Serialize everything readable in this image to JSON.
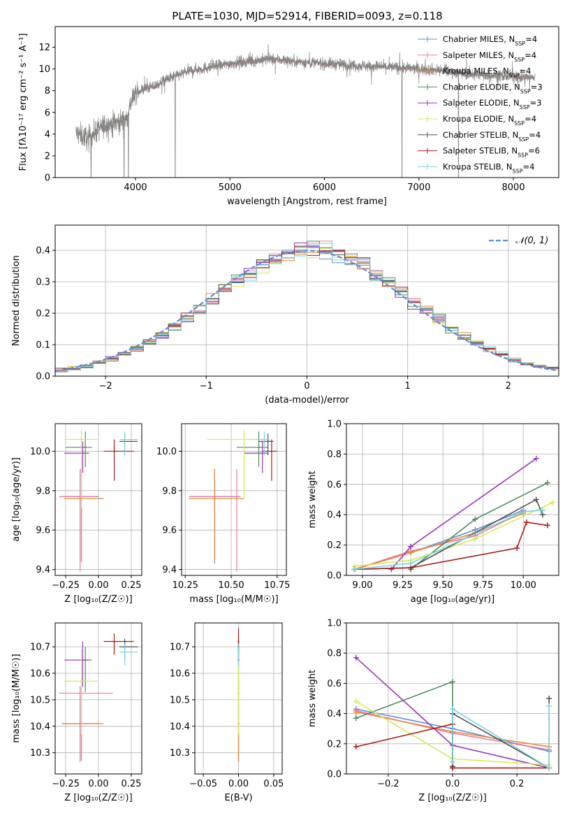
{
  "figure": {
    "title": "PLATE=1030, MJD=52914, FIBERID=0093, z=0.118"
  },
  "series_colors": [
    "#5d8fd6",
    "#e67ea6",
    "#e68a3a",
    "#4f8a5c",
    "#9a35b5",
    "#d6e85a",
    "#505050",
    "#a81b1b",
    "#7ad3dc"
  ],
  "chart_data": [
    {
      "id": "spectrum",
      "type": "line",
      "title": "PLATE=1030, MJD=52914, FIBERID=0093, z=0.118",
      "xlabel": "wavelength [Angstrom, rest frame]",
      "ylabel": "Flux [fλ10⁻¹⁷ erg cm⁻² s⁻¹ A⁻¹]",
      "xlim": [
        3150,
        8480
      ],
      "ylim": [
        0,
        13.9
      ],
      "xticks": [
        4000,
        5000,
        6000,
        7000,
        8000
      ],
      "yticks": [
        0,
        2,
        4,
        6,
        8,
        10,
        12
      ],
      "grid": false,
      "legend_position": "top-right",
      "legend": [
        {
          "label": "Chabrier MILES, N",
          "sub": "SSP",
          "tail": "=4",
          "color": "#5d8fd6"
        },
        {
          "label": "Salpeter MILES, N",
          "sub": "SSP",
          "tail": "=4",
          "color": "#e67ea6"
        },
        {
          "label": "Kroupa MILES, N",
          "sub": "SSP",
          "tail": "=4",
          "color": "#e68a3a"
        },
        {
          "label": "Chabrier ELODIE, N",
          "sub": "SSP",
          "tail": "=3",
          "color": "#4f8a5c"
        },
        {
          "label": "Salpeter ELODIE, N",
          "sub": "SSP",
          "tail": "=3",
          "color": "#9a35b5"
        },
        {
          "label": "Kroupa ELODIE, N",
          "sub": "SSP",
          "tail": "=4",
          "color": "#d6e85a"
        },
        {
          "label": "Chabrier STELIB, N",
          "sub": "SSP",
          "tail": "=4",
          "color": "#505050"
        },
        {
          "label": "Salpeter STELIB, N",
          "sub": "SSP",
          "tail": "=6",
          "color": "#a81b1b"
        },
        {
          "label": "Kroupa STELIB, N",
          "sub": "SSP",
          "tail": "=4",
          "color": "#7ad3dc"
        }
      ],
      "continuum": {
        "x": [
          3370,
          3500,
          3600,
          3700,
          3800,
          3900,
          3950,
          4000,
          4100,
          4200,
          4300,
          4400,
          4500,
          4600,
          4700,
          4800,
          4900,
          5000,
          5200,
          5400,
          5600,
          5800,
          6000,
          6200,
          6400,
          6600,
          6800,
          7000,
          7200,
          7400,
          7600,
          7800,
          8000,
          8200
        ],
        "y": [
          4.1,
          3.6,
          4.4,
          4.9,
          5.1,
          5.3,
          6.8,
          7.8,
          8.2,
          8.4,
          8.9,
          9.3,
          9.6,
          9.9,
          10.0,
          10.2,
          10.3,
          10.5,
          10.7,
          10.9,
          10.8,
          10.6,
          10.5,
          10.4,
          10.3,
          10.2,
          10.1,
          10.0,
          9.9,
          9.7,
          9.5,
          9.4,
          9.3,
          9.2
        ]
      },
      "absorption_dips": [
        3530,
        3880,
        3925,
        4420,
        6820,
        7420
      ]
    },
    {
      "id": "residuals",
      "type": "line",
      "xlabel": "(data-model)/error",
      "ylabel": "Normed distribution",
      "xlim": [
        -2.5,
        2.5
      ],
      "ylim": [
        0,
        0.48
      ],
      "xticks": [
        -2,
        -1,
        0,
        1,
        2
      ],
      "yticks": [
        0.0,
        0.1,
        0.2,
        0.3,
        0.4
      ],
      "grid": true,
      "legend_position": "top-right",
      "legend": [
        {
          "label": "𝒩(0, 1)",
          "color": "#5d8fd6"
        }
      ]
    },
    {
      "id": "age_vs_Z",
      "type": "scatter",
      "xlabel": "Z [log₁₀(Z/Z☉)]",
      "ylabel": "age  [log₁₀(age/yr)]",
      "xlim": [
        -0.33,
        0.33
      ],
      "ylim": [
        9.37,
        10.14
      ],
      "xticks": [
        -0.25,
        0.0,
        0.25
      ],
      "yticks": [
        9.4,
        9.6,
        9.8,
        10.0
      ],
      "grid": true,
      "points": [
        {
          "x": -0.14,
          "y": 9.77,
          "xerr": [
            0.14,
            0.14
          ],
          "yerr": [
            0.34,
            0.14
          ],
          "series": 0
        },
        {
          "x": -0.14,
          "y": 9.77,
          "xerr": [
            0.16,
            0.12
          ],
          "yerr": [
            0.38,
            0.14
          ],
          "series": 1
        },
        {
          "x": -0.13,
          "y": 9.76,
          "xerr": [
            0.13,
            0.17
          ],
          "yerr": [
            0.32,
            0.15
          ],
          "series": 2
        },
        {
          "x": -0.1,
          "y": 10.02,
          "xerr": [
            0.15,
            0.05
          ],
          "yerr": [
            0.1,
            0.08
          ],
          "series": 3
        },
        {
          "x": -0.12,
          "y": 9.99,
          "xerr": [
            0.14,
            0.05
          ],
          "yerr": [
            0.1,
            0.06
          ],
          "series": 4
        },
        {
          "x": -0.13,
          "y": 10.06,
          "xerr": [
            0.13,
            0.12
          ],
          "yerr": [
            0.35,
            0.05
          ],
          "series": 5
        },
        {
          "x": 0.2,
          "y": 10.05,
          "xerr": [
            0.04,
            0.1
          ],
          "yerr": [
            0.07,
            0.04
          ],
          "series": 6
        },
        {
          "x": 0.12,
          "y": 10.0,
          "xerr": [
            0.08,
            0.15
          ],
          "yerr": [
            0.15,
            0.06
          ],
          "series": 7
        },
        {
          "x": 0.2,
          "y": 10.06,
          "xerr": [
            0.04,
            0.1
          ],
          "yerr": [
            0.08,
            0.04
          ],
          "series": 8
        }
      ]
    },
    {
      "id": "age_vs_mass",
      "type": "scatter",
      "xlabel": "mass [log₁₀(M/M☉)]",
      "ylabel": "",
      "xlim": [
        10.23,
        10.8
      ],
      "ylim": [
        9.37,
        10.14
      ],
      "xticks": [
        10.25,
        10.5,
        10.75
      ],
      "yticks": [
        9.4,
        9.6,
        9.8,
        10.0
      ],
      "grid": true,
      "points": [
        {
          "x": 10.41,
          "y": 9.77,
          "xerr": [
            0.14,
            0.14
          ],
          "yerr": [
            0.34,
            0.14
          ],
          "series": 0
        },
        {
          "x": 10.53,
          "y": 9.77,
          "xerr": [
            0.26,
            0.02
          ],
          "yerr": [
            0.38,
            0.14
          ],
          "series": 1
        },
        {
          "x": 10.41,
          "y": 9.76,
          "xerr": [
            0.14,
            0.16
          ],
          "yerr": [
            0.32,
            0.15
          ],
          "series": 2
        },
        {
          "x": 10.65,
          "y": 10.02,
          "xerr": [
            0.12,
            0.05
          ],
          "yerr": [
            0.1,
            0.08
          ],
          "series": 3
        },
        {
          "x": 10.67,
          "y": 9.99,
          "xerr": [
            0.1,
            0.03
          ],
          "yerr": [
            0.1,
            0.06
          ],
          "series": 4
        },
        {
          "x": 10.57,
          "y": 10.06,
          "xerr": [
            0.2,
            0.12
          ],
          "yerr": [
            0.3,
            0.05
          ],
          "series": 5
        },
        {
          "x": 10.7,
          "y": 10.05,
          "xerr": [
            0.05,
            0.03
          ],
          "yerr": [
            0.07,
            0.04
          ],
          "series": 6
        },
        {
          "x": 10.72,
          "y": 10.0,
          "xerr": [
            0.05,
            0.03
          ],
          "yerr": [
            0.15,
            0.06
          ],
          "series": 7
        },
        {
          "x": 10.68,
          "y": 10.06,
          "xerr": [
            0.05,
            0.03
          ],
          "yerr": [
            0.08,
            0.04
          ],
          "series": 8
        }
      ]
    },
    {
      "id": "weight_vs_age",
      "type": "line",
      "xlabel": "age  [log₁₀(age/yr)]",
      "ylabel": "mass weight",
      "xlim": [
        8.9,
        10.22
      ],
      "ylim": [
        0,
        1.0
      ],
      "xticks": [
        9.0,
        9.25,
        9.5,
        9.75,
        10.0
      ],
      "yticks": [
        0.0,
        0.2,
        0.4,
        0.6,
        0.8,
        1.0
      ],
      "grid": true,
      "series": [
        {
          "name": "Chabrier MILES, NSSP=4",
          "x": [
            8.95,
            9.3,
            9.7,
            10.0
          ],
          "y": [
            0.04,
            0.15,
            0.3,
            0.43
          ]
        },
        {
          "name": "Salpeter MILES, NSSP=4",
          "x": [
            8.95,
            9.3,
            9.7,
            10.0
          ],
          "y": [
            0.04,
            0.16,
            0.26,
            0.42
          ]
        },
        {
          "name": "Kroupa MILES, NSSP=4",
          "x": [
            8.95,
            9.3,
            9.7,
            10.0
          ],
          "y": [
            0.04,
            0.15,
            0.28,
            0.41
          ]
        },
        {
          "name": "Chabrier ELODIE, NSSP=3",
          "x": [
            9.3,
            9.7,
            10.15
          ],
          "y": [
            0.04,
            0.37,
            0.61
          ]
        },
        {
          "name": "Salpeter ELODIE, NSSP=3",
          "x": [
            9.18,
            9.3,
            10.08
          ],
          "y": [
            0.04,
            0.19,
            0.77
          ]
        },
        {
          "name": "Kroupa ELODIE, NSSP=4",
          "x": [
            8.95,
            9.3,
            9.7,
            10.18
          ],
          "y": [
            0.06,
            0.1,
            0.24,
            0.48
          ]
        },
        {
          "name": "Chabrier STELIB, NSSP=4",
          "x": [
            8.95,
            9.3,
            10.08,
            10.12
          ],
          "y": [
            0.04,
            0.05,
            0.5,
            0.4
          ]
        },
        {
          "name": "Salpeter STELIB, NSSP=6",
          "x": [
            8.95,
            9.3,
            9.96,
            10.02,
            10.15
          ],
          "y": [
            0.04,
            0.05,
            0.18,
            0.35,
            0.33
          ]
        },
        {
          "name": "Kroupa STELIB, NSSP=4",
          "x": [
            8.95,
            9.3,
            10.0,
            10.12
          ],
          "y": [
            0.04,
            0.08,
            0.42,
            0.43
          ]
        }
      ]
    },
    {
      "id": "mass_vs_Z",
      "type": "scatter",
      "xlabel": "Z [log₁₀(Z/Z☉)]",
      "ylabel": "mass [log₁₀(M/M☉)]",
      "xlim": [
        -0.33,
        0.33
      ],
      "ylim": [
        10.22,
        10.79
      ],
      "xticks": [
        -0.25,
        0.0,
        0.25
      ],
      "yticks": [
        10.3,
        10.4,
        10.5,
        10.6,
        10.7
      ],
      "grid": true,
      "points": [
        {
          "x": -0.14,
          "y": 10.41,
          "xerr": [
            0.14,
            0.14
          ],
          "yerr": [
            0.14,
            0.14
          ],
          "series": 0
        },
        {
          "x": -0.14,
          "y": 10.525,
          "xerr": [
            0.16,
            0.25
          ],
          "yerr": [
            0.26,
            0.02
          ],
          "series": 1
        },
        {
          "x": -0.13,
          "y": 10.41,
          "xerr": [
            0.13,
            0.17
          ],
          "yerr": [
            0.14,
            0.16
          ],
          "series": 2
        },
        {
          "x": -0.1,
          "y": 10.65,
          "xerr": [
            0.15,
            0.05
          ],
          "yerr": [
            0.12,
            0.05
          ],
          "series": 3
        },
        {
          "x": -0.12,
          "y": 10.65,
          "xerr": [
            0.14,
            0.05
          ],
          "yerr": [
            0.1,
            0.07
          ],
          "series": 4
        },
        {
          "x": -0.13,
          "y": 10.57,
          "xerr": [
            0.13,
            0.12
          ],
          "yerr": [
            0.2,
            0.12
          ],
          "series": 5
        },
        {
          "x": 0.2,
          "y": 10.7,
          "xerr": [
            0.04,
            0.1
          ],
          "yerr": [
            0.05,
            0.03
          ],
          "series": 6
        },
        {
          "x": 0.12,
          "y": 10.72,
          "xerr": [
            0.08,
            0.15
          ],
          "yerr": [
            0.05,
            0.03
          ],
          "series": 7
        },
        {
          "x": 0.2,
          "y": 10.68,
          "xerr": [
            0.04,
            0.1
          ],
          "yerr": [
            0.05,
            0.03
          ],
          "series": 8
        }
      ]
    },
    {
      "id": "mass_vs_ebv",
      "type": "scatter",
      "xlabel": "E(B-V)",
      "ylabel": "",
      "xlim": [
        -0.062,
        0.062
      ],
      "ylim": [
        10.22,
        10.79
      ],
      "xticks": [
        -0.05,
        0.0,
        0.05
      ],
      "yticks": [
        10.3,
        10.4,
        10.5,
        10.6,
        10.7
      ],
      "grid": true,
      "points": [
        {
          "x": 0.0,
          "y": 10.41,
          "xerr": [
            0.0,
            0.0
          ],
          "yerr": [
            0.14,
            0.14
          ],
          "series": 0
        },
        {
          "x": 0.0,
          "y": 10.525,
          "xerr": [
            0.0,
            0.0
          ],
          "yerr": [
            0.26,
            0.02
          ],
          "series": 1
        },
        {
          "x": 0.0,
          "y": 10.41,
          "xerr": [
            0.0,
            0.0
          ],
          "yerr": [
            0.14,
            0.16
          ],
          "series": 2
        },
        {
          "x": 0.0,
          "y": 10.65,
          "xerr": [
            0.0,
            0.0
          ],
          "yerr": [
            0.12,
            0.05
          ],
          "series": 3
        },
        {
          "x": 0.0,
          "y": 10.65,
          "xerr": [
            0.0,
            0.0
          ],
          "yerr": [
            0.1,
            0.07
          ],
          "series": 4
        },
        {
          "x": 0.0,
          "y": 10.57,
          "xerr": [
            0.0,
            0.0
          ],
          "yerr": [
            0.2,
            0.12
          ],
          "series": 5
        },
        {
          "x": 0.0,
          "y": 10.7,
          "xerr": [
            0.0,
            0.0
          ],
          "yerr": [
            0.05,
            0.03
          ],
          "series": 6
        },
        {
          "x": 0.0,
          "y": 10.72,
          "xerr": [
            0.0,
            0.0
          ],
          "yerr": [
            0.05,
            0.05
          ],
          "series": 7
        },
        {
          "x": 0.0,
          "y": 10.68,
          "xerr": [
            0.0,
            0.0
          ],
          "yerr": [
            0.05,
            0.03
          ],
          "series": 8
        }
      ]
    },
    {
      "id": "weight_vs_Z",
      "type": "line",
      "xlabel": "Z [log₁₀(Z/Z☉)]",
      "ylabel": "mass weight",
      "xlim": [
        -0.33,
        0.33
      ],
      "ylim": [
        0,
        1.0
      ],
      "xticks": [
        -0.2,
        0.0,
        0.2
      ],
      "yticks": [
        0.0,
        0.2,
        0.4,
        0.6,
        0.8,
        1.0
      ],
      "grid": true,
      "series": [
        {
          "name": "Chabrier MILES, NSSP=4",
          "x": [
            -0.3,
            0.0,
            0.3
          ],
          "y": [
            0.43,
            0.3,
            0.15
          ]
        },
        {
          "name": "Salpeter MILES, NSSP=4",
          "x": [
            -0.3,
            0.0,
            0.3
          ],
          "y": [
            0.42,
            0.27,
            0.16
          ]
        },
        {
          "name": "Kroupa MILES, NSSP=4",
          "x": [
            -0.3,
            0.0,
            0.3
          ],
          "y": [
            0.41,
            0.28,
            0.18
          ]
        },
        {
          "name": "Chabrier ELODIE, NSSP=3",
          "x": [
            -0.3,
            0.0,
            0.0
          ],
          "y": [
            0.37,
            0.61,
            0.04
          ]
        },
        {
          "name": "Salpeter ELODIE, NSSP=3",
          "x": [
            -0.3,
            0.0,
            0.3
          ],
          "y": [
            0.77,
            0.19,
            0.04
          ]
        },
        {
          "name": "Kroupa ELODIE, NSSP=4",
          "x": [
            -0.3,
            0.0,
            0.3
          ],
          "y": [
            0.48,
            0.1,
            0.06
          ]
        },
        {
          "name": "Chabrier STELIB, NSSP=4",
          "x": [
            0.0,
            0.0,
            0.3,
            0.3
          ],
          "y": [
            0.05,
            0.4,
            0.04,
            0.5
          ]
        },
        {
          "name": "Salpeter STELIB, NSSP=6",
          "x": [
            -0.3,
            0.0,
            0.0,
            0.3
          ],
          "y": [
            0.18,
            0.33,
            0.04,
            0.04
          ]
        },
        {
          "name": "Kroupa STELIB, NSSP=4",
          "x": [
            0.0,
            0.0,
            0.3,
            0.3
          ],
          "y": [
            0.08,
            0.43,
            0.04,
            0.45
          ]
        }
      ]
    }
  ]
}
